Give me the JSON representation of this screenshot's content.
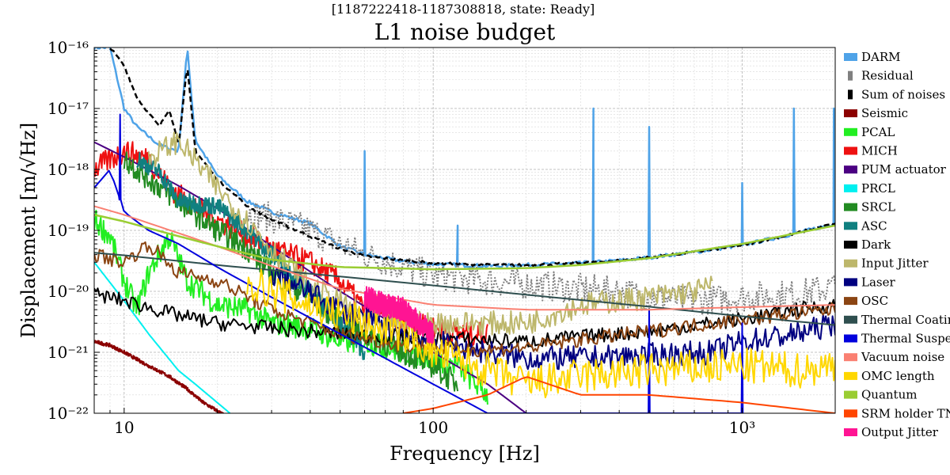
{
  "chart_data": {
    "type": "line",
    "supertitle": "[1187222418-1187308818, state: Ready]",
    "title": "L1 noise budget",
    "xlabel": "Frequency [Hz]",
    "ylabel": "Displacement [m/√Hz]",
    "xscale": "log",
    "yscale": "log",
    "xlim": [
      8,
      2000
    ],
    "ylim": [
      1e-22,
      1e-16
    ],
    "grid": true,
    "legend_position": "right",
    "x_ticks": [
      {
        "value": 10,
        "label": "10"
      },
      {
        "value": 100,
        "label": "100"
      },
      {
        "value": 1000,
        "label": "10³"
      }
    ],
    "y_ticks": [
      {
        "value": 1e-22,
        "label": "10⁻²²"
      },
      {
        "value": 1e-21,
        "label": "10⁻²¹"
      },
      {
        "value": 1e-20,
        "label": "10⁻²⁰"
      },
      {
        "value": 1e-19,
        "label": "10⁻¹⁹"
      },
      {
        "value": 1e-18,
        "label": "10⁻¹⁸"
      },
      {
        "value": 1e-17,
        "label": "10⁻¹⁷"
      },
      {
        "value": 1e-16,
        "label": "10⁻¹⁶"
      }
    ],
    "series": [
      {
        "name": "DARM",
        "color": "#4fa3e8",
        "dash": "solid",
        "width": 2.5,
        "noise": 0.03,
        "x": [
          8,
          9,
          10,
          11,
          13,
          15,
          16,
          17,
          20,
          25,
          30,
          40,
          50,
          60,
          80,
          100,
          150,
          200,
          300,
          400,
          500,
          700,
          1000,
          1500,
          2000
        ],
        "y": [
          1e-16,
          1e-16,
          1e-17,
          5e-18,
          2.5e-18,
          2e-18,
          1e-16,
          3e-18,
          8e-19,
          3e-19,
          2e-19,
          1.3e-19,
          5.5e-20,
          4e-20,
          3.1e-20,
          2.8e-20,
          2.6e-20,
          2.7e-20,
          2.9e-20,
          3.2e-20,
          3.6e-20,
          4.4e-20,
          5.7e-20,
          9e-20,
          1.3e-19
        ],
        "peaks": [
          [
            60,
            2e-18
          ],
          [
            120,
            1.2e-19
          ],
          [
            330,
            1e-17
          ],
          [
            500,
            5e-18
          ],
          [
            1000,
            6e-19
          ],
          [
            1470,
            1e-17
          ],
          [
            1980,
            1e-17
          ]
        ]
      },
      {
        "name": "Residual",
        "color": "#808080",
        "dash": "dotted",
        "width": 2,
        "noise": 0.25,
        "x": [
          25,
          30,
          40,
          50,
          60,
          80,
          100,
          150,
          200,
          300,
          400,
          500,
          700,
          1000,
          1500,
          2000
        ],
        "y": [
          2e-19,
          1.6e-19,
          1e-19,
          6e-20,
          4e-20,
          2.5e-20,
          1.8e-20,
          1.5e-20,
          1.3e-20,
          1.1e-20,
          1e-20,
          8e-21,
          7e-21,
          8e-21,
          9e-21,
          1.2e-20
        ]
      },
      {
        "name": "Sum of noises",
        "color": "#000000",
        "dash": "dashed",
        "width": 2.5,
        "noise": 0.02,
        "x": [
          9,
          10,
          11,
          13,
          14,
          15,
          16,
          17,
          20,
          25,
          30,
          40,
          50,
          60,
          80,
          100,
          150,
          200,
          300,
          400,
          500,
          700,
          1000,
          1500,
          2000
        ],
        "y": [
          1e-16,
          5e-17,
          1.5e-17,
          5e-18,
          1e-17,
          2.5e-18,
          5e-17,
          2e-18,
          7e-19,
          2.5e-19,
          1.5e-19,
          8e-20,
          5e-20,
          3.8e-20,
          3.2e-20,
          2.9e-20,
          2.7e-20,
          2.7e-20,
          2.9e-20,
          3.2e-20,
          3.6e-20,
          4.4e-20,
          5.7e-20,
          9e-20,
          1.3e-19
        ]
      },
      {
        "name": "Seismic",
        "color": "#8b0000",
        "dash": "solid",
        "width": 2,
        "noise": 0.03,
        "x": [
          8,
          9,
          10,
          12,
          14,
          16,
          18,
          20,
          22
        ],
        "y": [
          1.5e-21,
          1.3e-21,
          1e-21,
          6e-22,
          4e-22,
          2.5e-22,
          1.5e-22,
          1.1e-22,
          8e-23
        ]
      },
      {
        "name": "PCAL",
        "color": "#22ee22",
        "dash": "solid",
        "width": 2,
        "noise": 0.2,
        "x": [
          8,
          9,
          10,
          11,
          12,
          14,
          16,
          20,
          25,
          30,
          40,
          50,
          60,
          80,
          100,
          120,
          150
        ],
        "y": [
          1.5e-19,
          8e-20,
          1.5e-20,
          5e-21,
          2e-20,
          8e-20,
          1.5e-20,
          6e-21,
          5e-21,
          3e-21,
          2.5e-21,
          1.5e-21,
          1.5e-21,
          1e-21,
          8e-22,
          6e-22,
          2e-22
        ]
      },
      {
        "name": "MICH",
        "color": "#ee1111",
        "dash": "solid",
        "width": 2,
        "noise": 0.2,
        "x": [
          8,
          10,
          12,
          14,
          16,
          20,
          25,
          30,
          40,
          50,
          60,
          80,
          100,
          120,
          150
        ],
        "y": [
          1e-18,
          2e-18,
          1.5e-18,
          5e-19,
          3e-19,
          1.5e-19,
          8e-20,
          5e-20,
          3e-20,
          1.5e-20,
          5e-21,
          3e-21,
          2.5e-21,
          2e-21,
          2e-21
        ]
      },
      {
        "name": "PUM actuator",
        "color": "#4b0082",
        "dash": "solid",
        "width": 2,
        "noise": 0,
        "x": [
          8,
          10,
          15,
          20,
          30,
          50,
          70,
          100,
          150,
          200
        ],
        "y": [
          2.8e-18,
          1.6e-18,
          5.4e-19,
          2.3e-19,
          5.5e-20,
          1e-20,
          3.5e-21,
          1e-21,
          3e-22,
          1e-22
        ]
      },
      {
        "name": "PRCL",
        "color": "#00f0f0",
        "dash": "solid",
        "width": 2,
        "noise": 0,
        "x": [
          8,
          10,
          12,
          15,
          17,
          20,
          22
        ],
        "y": [
          3e-20,
          7e-21,
          2e-21,
          5e-22,
          3e-22,
          1.5e-22,
          1e-22
        ]
      },
      {
        "name": "SRCL",
        "color": "#228b22",
        "dash": "solid",
        "width": 2,
        "noise": 0.2,
        "x": [
          10,
          12,
          15,
          20,
          25,
          30,
          40,
          50,
          60,
          80,
          100,
          120
        ],
        "y": [
          1.5e-18,
          7e-19,
          3e-19,
          1e-19,
          5e-20,
          2e-20,
          8e-21,
          3e-21,
          2e-21,
          1e-21,
          6e-22,
          3e-22
        ]
      },
      {
        "name": "ASC",
        "color": "#108080",
        "dash": "solid",
        "width": 2,
        "noise": 0.15,
        "x": [
          11,
          13,
          15,
          20,
          25,
          30,
          40,
          50,
          60
        ],
        "y": [
          1.5e-18,
          9e-19,
          3e-19,
          2.5e-19,
          1e-19,
          4e-20,
          1e-20,
          3e-21,
          1e-21
        ]
      },
      {
        "name": "Dark",
        "color": "#000000",
        "dash": "solid",
        "width": 2,
        "noise": 0.12,
        "x": [
          8,
          10,
          15,
          20,
          30,
          50,
          80,
          100,
          150,
          200,
          300,
          500,
          1000,
          1500,
          2000
        ],
        "y": [
          9e-21,
          7e-21,
          4e-21,
          3e-21,
          2.5e-21,
          2e-21,
          1.8e-21,
          1.7e-21,
          1.6e-21,
          1.5e-21,
          1.8e-21,
          2.2e-21,
          3.5e-21,
          5e-21,
          6e-21
        ]
      },
      {
        "name": "Input Jitter",
        "color": "#bdb76b",
        "dash": "solid",
        "width": 2,
        "noise": 0.2,
        "x": [
          12,
          15,
          20,
          30,
          40,
          60,
          80,
          100,
          150,
          200,
          300,
          500,
          700,
          800
        ],
        "y": [
          1.5e-18,
          3e-18,
          5e-19,
          5e-20,
          1.2e-20,
          4e-21,
          3e-21,
          3e-21,
          3e-21,
          3e-21,
          6e-21,
          8e-21,
          1e-20,
          1.2e-20
        ]
      },
      {
        "name": "Laser",
        "color": "#000080",
        "dash": "solid",
        "width": 2,
        "noise": 0.2,
        "x": [
          30,
          50,
          80,
          100,
          150,
          200,
          300,
          500,
          800,
          1000,
          1500,
          2000
        ],
        "y": [
          2e-20,
          5e-21,
          2e-21,
          1.5e-21,
          1e-21,
          8e-22,
          8e-22,
          9e-22,
          1e-21,
          1.5e-21,
          2e-21,
          3e-21
        ]
      },
      {
        "name": "OSC",
        "color": "#8b4513",
        "dash": "solid",
        "width": 2,
        "noise": 0.12,
        "x": [
          8,
          10,
          12,
          15,
          20,
          30,
          50,
          80,
          100,
          150,
          200,
          300,
          500,
          1000,
          2000
        ],
        "y": [
          4e-20,
          3e-20,
          6e-20,
          2e-20,
          1.5e-20,
          5e-21,
          2e-21,
          1.3e-21,
          1.2e-21,
          1.1e-21,
          1.2e-21,
          1.6e-21,
          2.2e-21,
          3.5e-21,
          5e-21
        ]
      },
      {
        "name": "Thermal Coatings",
        "color": "#2f4f4f",
        "dash": "solid",
        "width": 2,
        "noise": 0,
        "x": [
          8,
          10,
          20,
          50,
          100,
          200,
          500,
          1000,
          2000
        ],
        "y": [
          4.3e-20,
          3.9e-20,
          2.7e-20,
          1.75e-20,
          1.25e-20,
          8.8e-21,
          5.6e-21,
          3.9e-21,
          2.8e-21
        ]
      },
      {
        "name": "Thermal Suspension",
        "color": "#0000dd",
        "dash": "solid",
        "width": 2,
        "noise": 0,
        "x": [
          8,
          9,
          10,
          12,
          15,
          20,
          30,
          50,
          100,
          150
        ],
        "y": [
          5e-19,
          1e-18,
          2e-19,
          1e-19,
          6e-20,
          2.5e-20,
          8e-21,
          2e-21,
          3e-22,
          1e-22
        ],
        "peaks": [
          [
            9.7,
            8e-18
          ],
          [
            500,
            5e-21
          ],
          [
            1000,
            3e-21
          ]
        ]
      },
      {
        "name": "Vacuum noise",
        "color": "#fa8072",
        "dash": "solid",
        "width": 2,
        "noise": 0,
        "x": [
          8,
          10,
          15,
          20,
          30,
          50,
          100,
          200,
          500,
          1000,
          2000
        ],
        "y": [
          2.5e-19,
          1.8e-19,
          9e-20,
          5.5e-20,
          2.6e-20,
          1.1e-20,
          6e-21,
          5e-21,
          5e-21,
          5.5e-21,
          6e-21
        ]
      },
      {
        "name": "OMC length",
        "color": "#ffd700",
        "dash": "solid",
        "width": 2,
        "noise": 0.3,
        "x": [
          25,
          30,
          40,
          50,
          60,
          80,
          100,
          150,
          200,
          300,
          500,
          1000,
          1500,
          2000
        ],
        "y": [
          1.5e-20,
          1e-20,
          6e-21,
          4e-21,
          3e-21,
          2e-21,
          1e-21,
          5e-22,
          3e-22,
          4e-22,
          5e-22,
          6e-22,
          5e-22,
          6e-22
        ]
      },
      {
        "name": "Quantum",
        "color": "#9acd32",
        "dash": "solid",
        "width": 2.5,
        "noise": 0,
        "x": [
          8,
          10,
          15,
          20,
          30,
          50,
          100,
          200,
          300,
          500,
          1000,
          2000
        ],
        "y": [
          1.8e-19,
          1.4e-19,
          8e-20,
          5.5e-20,
          3.3e-20,
          2.5e-20,
          2.3e-20,
          2.4e-20,
          2.7e-20,
          3.5e-20,
          6e-20,
          1.2e-19
        ]
      },
      {
        "name": "SRM holder TN",
        "color": "#ff4500",
        "dash": "solid",
        "width": 2,
        "noise": 0,
        "x": [
          80,
          100,
          150,
          200,
          300,
          500,
          1000,
          2000
        ],
        "y": [
          1e-22,
          1.2e-22,
          2e-22,
          4e-22,
          2e-22,
          2e-22,
          1.5e-22,
          1e-22
        ]
      },
      {
        "name": "Output Jitter",
        "color": "#ff1493",
        "dash": "solid",
        "width": 2,
        "noise": 0.2,
        "x": [
          60,
          70,
          80,
          90,
          100
        ],
        "y": [
          8e-21,
          6e-21,
          5e-21,
          3e-21,
          2e-21
        ]
      }
    ]
  }
}
